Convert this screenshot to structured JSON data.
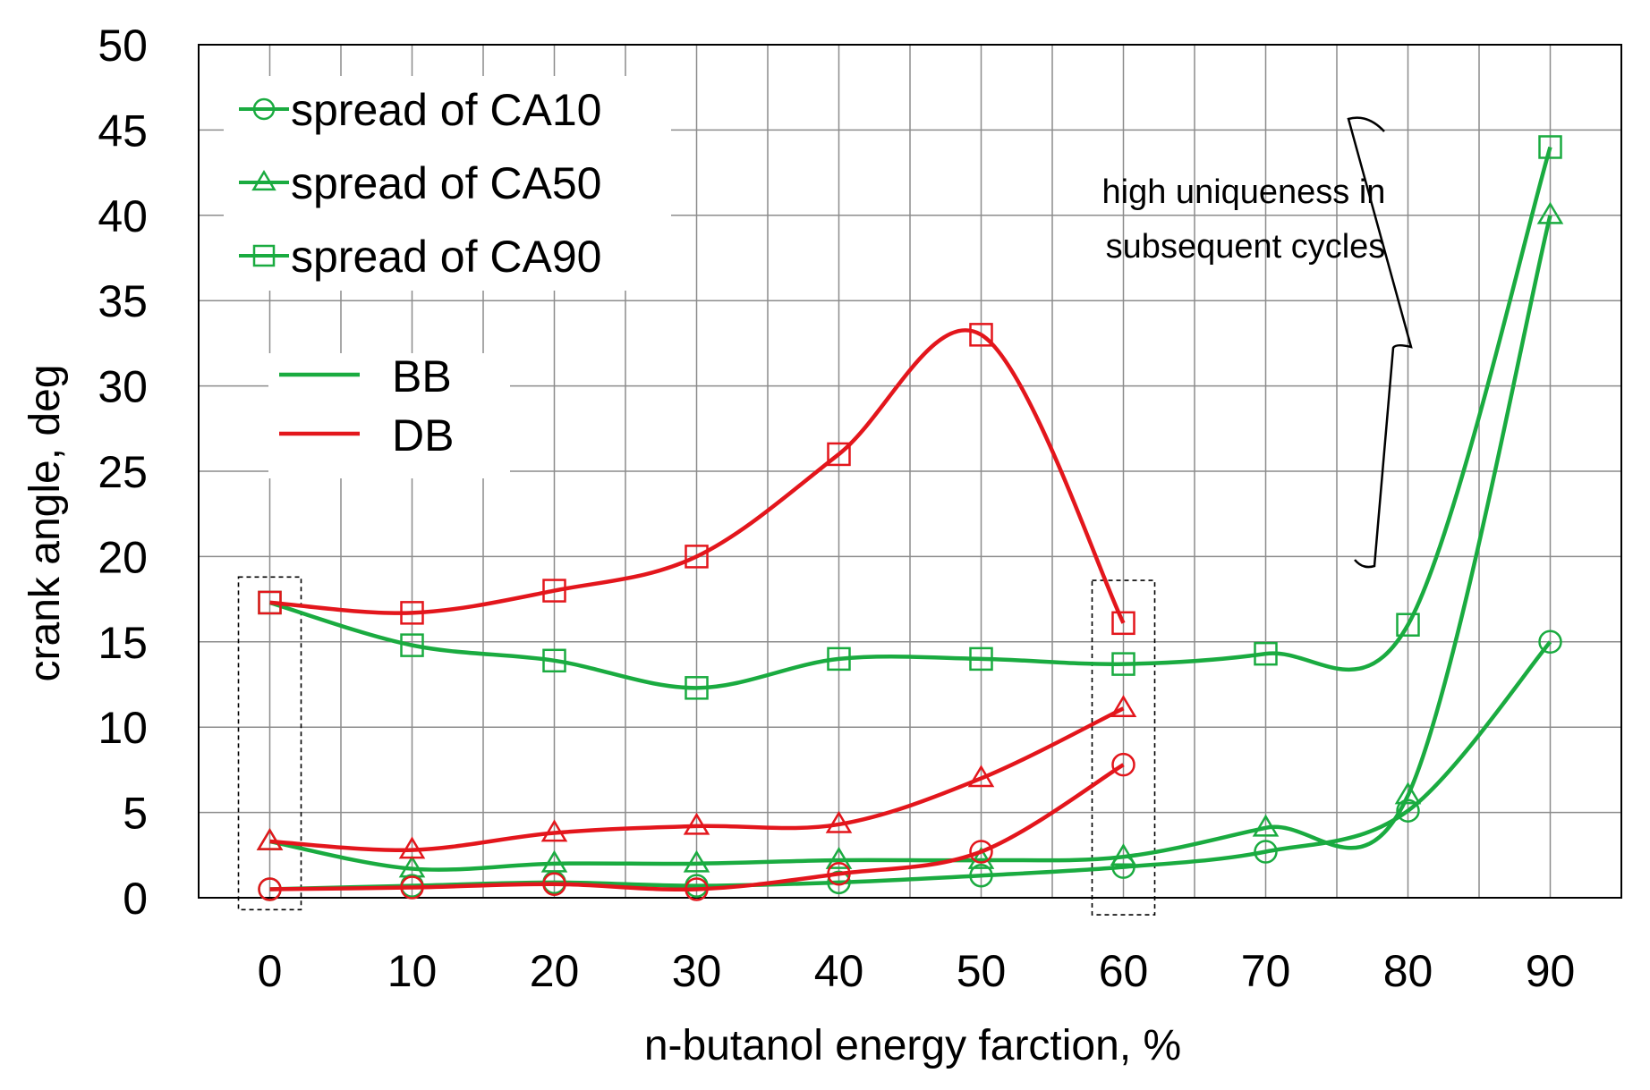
{
  "chart_data": {
    "type": "line",
    "title": "",
    "xlabel": "n-butanol energy farction, %",
    "ylabel": "crank angle, deg",
    "xlim": [
      -5,
      95
    ],
    "ylim": [
      0,
      50
    ],
    "x_ticks": [
      0,
      10,
      20,
      30,
      40,
      50,
      60,
      70,
      80,
      90
    ],
    "y_ticks": [
      0,
      5,
      10,
      15,
      20,
      25,
      30,
      35,
      40,
      45,
      50
    ],
    "grid": true,
    "colors": {
      "BB": "#1aab40",
      "DB": "#e3161c"
    },
    "series": [
      {
        "name": "BB spread of CA10",
        "fuel": "BB",
        "marker": "circle",
        "x": [
          0,
          10,
          20,
          30,
          40,
          50,
          60,
          70,
          80,
          90
        ],
        "values": [
          0.5,
          0.7,
          0.9,
          0.7,
          0.9,
          1.3,
          1.8,
          2.7,
          5.1,
          15.0
        ]
      },
      {
        "name": "BB spread of CA50",
        "fuel": "BB",
        "marker": "triangle",
        "x": [
          0,
          10,
          20,
          30,
          40,
          50,
          60,
          70,
          80,
          90
        ],
        "values": [
          3.3,
          1.7,
          2.0,
          2.0,
          2.2,
          2.2,
          2.4,
          4.1,
          6.0,
          40.0
        ]
      },
      {
        "name": "BB spread of CA90",
        "fuel": "BB",
        "marker": "square",
        "x": [
          0,
          10,
          20,
          30,
          40,
          50,
          60,
          70,
          80,
          90
        ],
        "values": [
          17.3,
          14.8,
          13.9,
          12.3,
          14.0,
          14.0,
          13.7,
          14.3,
          16.0,
          44.0
        ]
      },
      {
        "name": "DB spread of CA10",
        "fuel": "DB",
        "marker": "circle",
        "x": [
          0,
          10,
          20,
          30,
          40,
          50,
          60
        ],
        "values": [
          0.5,
          0.6,
          0.8,
          0.5,
          1.4,
          2.7,
          7.8
        ]
      },
      {
        "name": "DB spread of CA50",
        "fuel": "DB",
        "marker": "triangle",
        "x": [
          0,
          10,
          20,
          30,
          40,
          50,
          60
        ],
        "values": [
          3.3,
          2.8,
          3.8,
          4.2,
          4.3,
          7.0,
          11.1
        ]
      },
      {
        "name": "DB spread of CA90",
        "fuel": "DB",
        "marker": "square",
        "x": [
          0,
          10,
          20,
          30,
          40,
          50,
          60
        ],
        "values": [
          17.3,
          16.7,
          18.0,
          20.0,
          26.0,
          33.0,
          16.1
        ]
      }
    ],
    "legend_markers": {
      "position": "top-left",
      "items": [
        {
          "label": "spread of CA10",
          "marker": "circle"
        },
        {
          "label": "spread of CA50",
          "marker": "triangle"
        },
        {
          "label": "spread of CA90",
          "marker": "square"
        }
      ]
    },
    "legend_colors": {
      "position": "upper-left",
      "items": [
        {
          "label": "BB",
          "color": "#1aab40"
        },
        {
          "label": "DB",
          "color": "#e3161c"
        }
      ]
    },
    "annotation": {
      "lines": [
        "high uniqueness in",
        "subsequent cycles"
      ]
    }
  }
}
